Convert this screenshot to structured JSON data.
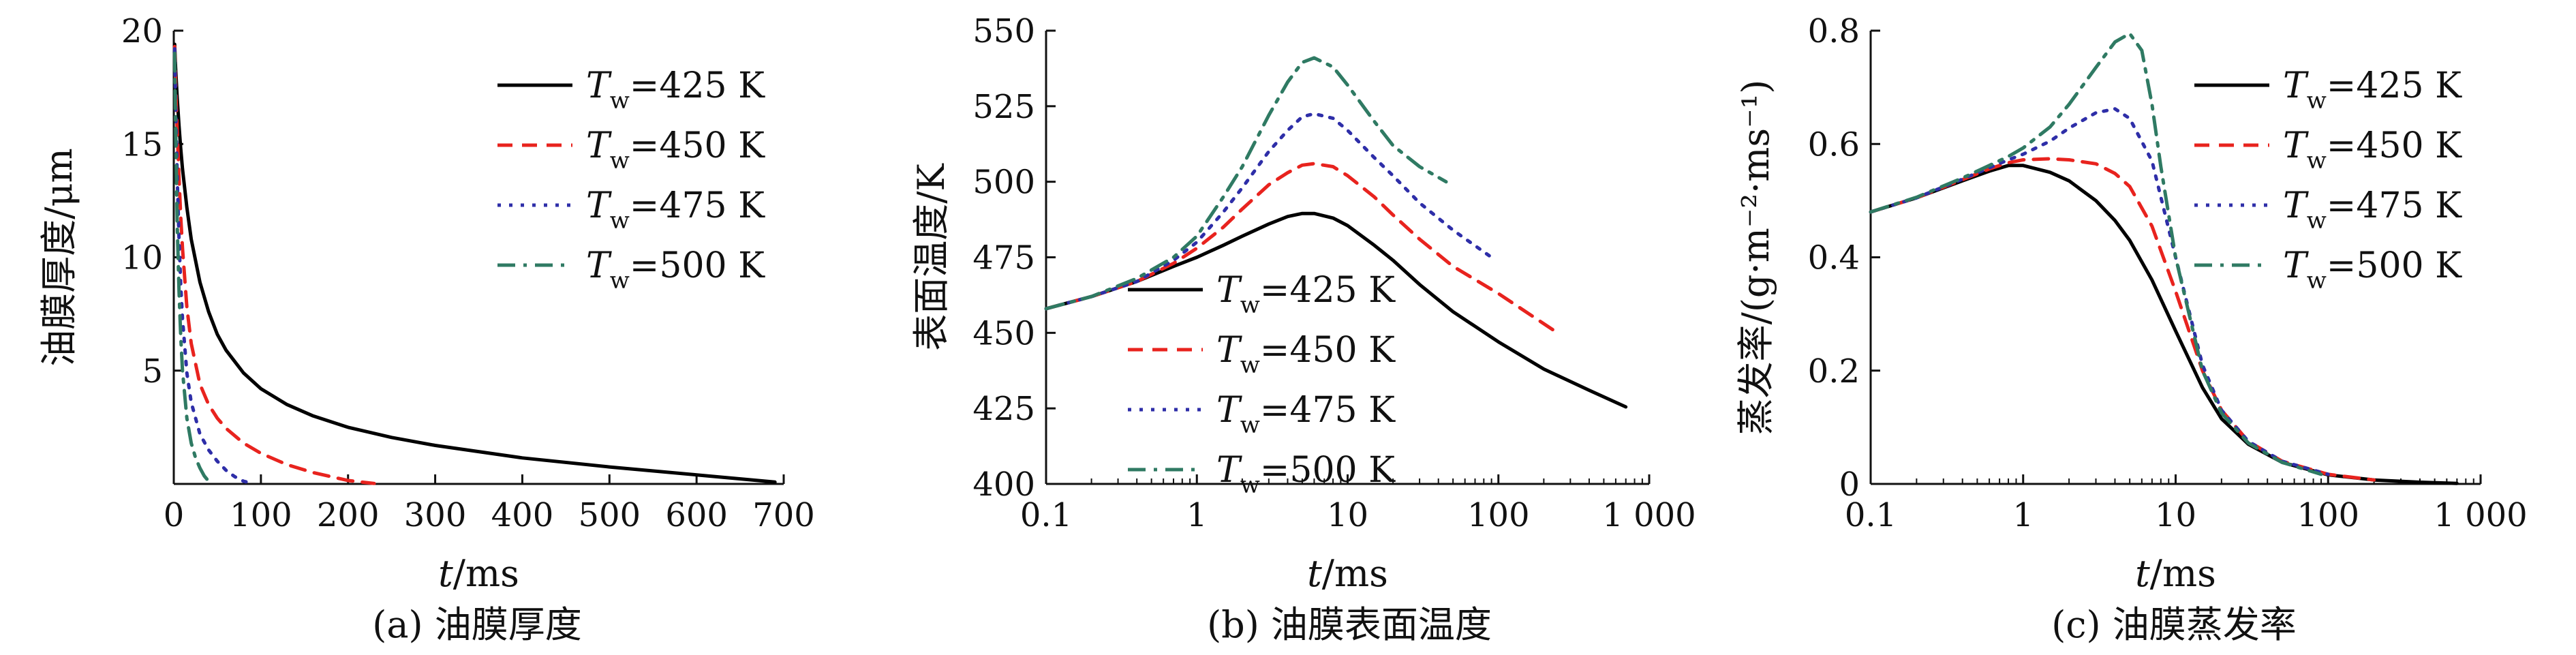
{
  "colors": {
    "Tw425": "#000000",
    "Tw450": "#e8231e",
    "Tw475": "#2e2ea8",
    "Tw500": "#2f7a63"
  },
  "chart_data": [
    {
      "type": "line",
      "caption": "(a) 油膜厚度",
      "xlabel": {
        "italic": "t",
        "unit": "/ms"
      },
      "ylabel": "油膜厚度/μm",
      "xlim": [
        0,
        700
      ],
      "ylim": [
        0,
        20
      ],
      "x_scale": "linear",
      "x_ticks": [
        0,
        100,
        200,
        300,
        400,
        500,
        600,
        700
      ],
      "x_tick_labels": [
        "0",
        "100",
        "200",
        "300",
        "400",
        "500",
        "600",
        "700"
      ],
      "y_ticks": [
        5,
        10,
        15,
        20
      ],
      "y_tick_labels": [
        "5",
        "10",
        "15",
        "20"
      ],
      "legend_position": "top-right",
      "series": [
        {
          "name": "T_w=425 K",
          "legend": {
            "var": "T",
            "sub": "w",
            "rest": "=425 K"
          },
          "color": "#000000",
          "dash": "solid",
          "x": [
            1,
            2,
            4,
            6,
            8,
            10,
            15,
            20,
            30,
            40,
            50,
            60,
            80,
            100,
            130,
            160,
            200,
            250,
            300,
            400,
            500,
            600,
            690
          ],
          "y": [
            19.4,
            18.4,
            17.0,
            15.8,
            14.8,
            13.9,
            12.2,
            10.8,
            8.9,
            7.6,
            6.6,
            5.9,
            4.9,
            4.2,
            3.5,
            3.0,
            2.5,
            2.05,
            1.7,
            1.15,
            0.75,
            0.4,
            0.08
          ]
        },
        {
          "name": "T_w=450 K",
          "legend": {
            "var": "T",
            "sub": "w",
            "rest": "=450 K"
          },
          "color": "#e8231e",
          "dash": "dashed",
          "x": [
            1,
            2,
            4,
            6,
            8,
            10,
            15,
            20,
            30,
            40,
            50,
            60,
            80,
            100,
            130,
            160,
            200,
            230
          ],
          "y": [
            19.3,
            17.8,
            15.5,
            13.5,
            11.8,
            10.4,
            7.8,
            6.2,
            4.4,
            3.5,
            2.9,
            2.45,
            1.8,
            1.35,
            0.85,
            0.5,
            0.15,
            0.02
          ]
        },
        {
          "name": "T_w=475 K",
          "legend": {
            "var": "T",
            "sub": "w",
            "rest": "=475 K"
          },
          "color": "#2e2ea8",
          "dash": "dotted",
          "x": [
            1,
            2,
            4,
            6,
            8,
            10,
            15,
            20,
            30,
            40,
            50,
            60,
            70,
            80,
            90
          ],
          "y": [
            19.2,
            17.0,
            13.5,
            10.8,
            8.8,
            7.3,
            4.9,
            3.6,
            2.2,
            1.5,
            1.0,
            0.6,
            0.32,
            0.12,
            0.02
          ]
        },
        {
          "name": "T_w=500 K",
          "legend": {
            "var": "T",
            "sub": "w",
            "rest": "=500 K"
          },
          "color": "#2f7a63",
          "dash": "dashdot",
          "x": [
            1,
            2,
            4,
            6,
            8,
            10,
            15,
            20,
            25,
            30,
            35,
            40,
            45
          ],
          "y": [
            19.0,
            15.9,
            11.4,
            8.5,
            6.5,
            5.0,
            2.9,
            1.8,
            1.15,
            0.7,
            0.35,
            0.12,
            0.02
          ]
        }
      ]
    },
    {
      "type": "line",
      "caption": "(b) 油膜表面温度",
      "xlabel": {
        "italic": "t",
        "unit": "/ms"
      },
      "ylabel": "表面温度/K",
      "xlim": [
        0.1,
        1000
      ],
      "ylim": [
        400,
        550
      ],
      "x_scale": "log",
      "x_ticks": [
        0.1,
        1,
        10,
        100,
        1000
      ],
      "x_tick_labels": [
        "0.1",
        "1",
        "10",
        "100",
        "1 000"
      ],
      "y_ticks": [
        400,
        425,
        450,
        475,
        500,
        525,
        550
      ],
      "y_tick_labels": [
        "400",
        "425",
        "450",
        "475",
        "500",
        "525",
        "550"
      ],
      "legend_position": "bottom-left",
      "series": [
        {
          "name": "T_w=425 K",
          "legend": {
            "var": "T",
            "sub": "w",
            "rest": "=425 K"
          },
          "color": "#000000",
          "dash": "solid",
          "x": [
            0.1,
            0.2,
            0.4,
            0.7,
            1,
            1.5,
            2,
            3,
            4,
            5,
            6,
            8,
            10,
            15,
            20,
            30,
            50,
            100,
            200,
            400,
            700
          ],
          "y": [
            458,
            462,
            467,
            472,
            475,
            479,
            482,
            486,
            488.5,
            489.5,
            489.5,
            488,
            485.5,
            479,
            474,
            466,
            457,
            447,
            438,
            431,
            425.5
          ]
        },
        {
          "name": "T_w=450 K",
          "legend": {
            "var": "T",
            "sub": "w",
            "rest": "=450 K"
          },
          "color": "#e8231e",
          "dash": "dashed",
          "x": [
            0.1,
            0.2,
            0.4,
            0.7,
            1,
            1.5,
            2,
            3,
            4,
            5,
            6,
            8,
            10,
            15,
            20,
            30,
            50,
            100,
            230
          ],
          "y": [
            458,
            462,
            467,
            473,
            478,
            485,
            491,
            499,
            503,
            505.5,
            506,
            505,
            502,
            495,
            489,
            481,
            472,
            463,
            451
          ]
        },
        {
          "name": "T_w=475 K",
          "legend": {
            "var": "T",
            "sub": "w",
            "rest": "=475 K"
          },
          "color": "#2e2ea8",
          "dash": "dotted",
          "x": [
            0.1,
            0.2,
            0.4,
            0.7,
            1,
            1.5,
            2,
            3,
            4,
            5,
            6,
            8,
            10,
            15,
            20,
            30,
            50,
            90
          ],
          "y": [
            458,
            462,
            467,
            474,
            480,
            490,
            498,
            510,
            517,
            521.5,
            522.5,
            521,
            517,
            508,
            502,
            493,
            484,
            475
          ]
        },
        {
          "name": "T_w=500 K",
          "legend": {
            "var": "T",
            "sub": "w",
            "rest": "=500 K"
          },
          "color": "#2f7a63",
          "dash": "dashdot",
          "x": [
            0.1,
            0.2,
            0.4,
            0.7,
            1,
            1.5,
            2,
            3,
            4,
            5,
            6,
            8,
            10,
            15,
            20,
            30,
            45
          ],
          "y": [
            458,
            462,
            468,
            475,
            482,
            495,
            505,
            522,
            533,
            539.5,
            541,
            538,
            532,
            520,
            512,
            505,
            500
          ]
        }
      ]
    },
    {
      "type": "line",
      "caption": "(c) 油膜蒸发率",
      "xlabel": {
        "italic": "t",
        "unit": "/ms"
      },
      "ylabel": "蒸发率/(g·m⁻²·ms⁻¹)",
      "xlim": [
        0.1,
        1000
      ],
      "ylim": [
        0,
        0.8
      ],
      "x_scale": "log",
      "x_ticks": [
        0.1,
        1,
        10,
        100,
        1000
      ],
      "x_tick_labels": [
        "0.1",
        "1",
        "10",
        "100",
        "1 000"
      ],
      "y_ticks": [
        0,
        0.2,
        0.4,
        0.6,
        0.8
      ],
      "y_tick_labels": [
        "0",
        "0.2",
        "0.4",
        "0.6",
        "0.8"
      ],
      "legend_position": "top-right",
      "series": [
        {
          "name": "T_w=425 K",
          "legend": {
            "var": "T",
            "sub": "w",
            "rest": "=425 K"
          },
          "color": "#000000",
          "dash": "solid",
          "x": [
            0.1,
            0.2,
            0.4,
            0.6,
            0.8,
            1,
            1.5,
            2,
            3,
            4,
            5,
            7,
            10,
            15,
            20,
            30,
            50,
            100,
            200,
            400,
            700
          ],
          "y": [
            0.48,
            0.505,
            0.535,
            0.552,
            0.562,
            0.562,
            0.55,
            0.535,
            0.5,
            0.465,
            0.43,
            0.36,
            0.27,
            0.17,
            0.115,
            0.07,
            0.038,
            0.016,
            0.007,
            0.003,
            0.001
          ]
        },
        {
          "name": "T_w=450 K",
          "legend": {
            "var": "T",
            "sub": "w",
            "rest": "=450 K"
          },
          "color": "#e8231e",
          "dash": "dashed",
          "x": [
            0.1,
            0.2,
            0.4,
            0.6,
            0.8,
            1,
            1.5,
            2,
            3,
            4,
            5,
            7,
            10,
            15,
            20,
            30,
            50,
            100,
            200
          ],
          "y": [
            0.48,
            0.505,
            0.537,
            0.556,
            0.567,
            0.572,
            0.574,
            0.572,
            0.565,
            0.548,
            0.525,
            0.455,
            0.34,
            0.2,
            0.13,
            0.075,
            0.04,
            0.017,
            0.007
          ]
        },
        {
          "name": "T_w=475 K",
          "legend": {
            "var": "T",
            "sub": "w",
            "rest": "=475 K"
          },
          "color": "#2e2ea8",
          "dash": "dotted",
          "x": [
            0.1,
            0.2,
            0.4,
            0.6,
            0.8,
            1,
            1.5,
            2,
            3,
            4,
            5,
            7,
            10,
            15,
            20,
            30,
            50,
            100
          ],
          "y": [
            0.48,
            0.505,
            0.538,
            0.558,
            0.572,
            0.582,
            0.605,
            0.628,
            0.655,
            0.662,
            0.645,
            0.57,
            0.4,
            0.21,
            0.13,
            0.075,
            0.04,
            0.017
          ]
        },
        {
          "name": "T_w=500 K",
          "legend": {
            "var": "T",
            "sub": "w",
            "rest": "=500 K"
          },
          "color": "#2f7a63",
          "dash": "dashdot",
          "x": [
            0.1,
            0.2,
            0.4,
            0.6,
            0.8,
            1,
            1.5,
            2,
            3,
            4,
            5,
            6,
            7,
            8,
            10,
            15,
            20,
            30,
            50,
            90
          ],
          "y": [
            0.48,
            0.506,
            0.54,
            0.562,
            0.578,
            0.593,
            0.63,
            0.67,
            0.735,
            0.78,
            0.795,
            0.765,
            0.67,
            0.56,
            0.4,
            0.2,
            0.125,
            0.072,
            0.038,
            0.017
          ]
        }
      ]
    }
  ]
}
